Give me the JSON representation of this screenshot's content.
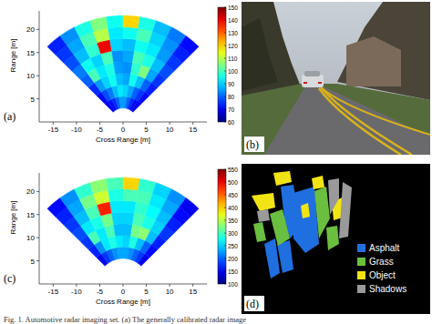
{
  "chart_data": [
    {
      "type": "heatmap",
      "panel_label": "(a)",
      "xlabel": "Cross Range [m]",
      "ylabel": "Range [m]",
      "xlim": [
        -18,
        18
      ],
      "ylim": [
        0,
        24
      ],
      "xticks": [
        -15,
        -10,
        -5,
        0,
        5,
        10,
        15
      ],
      "yticks": [
        5,
        10,
        15,
        20
      ],
      "angle_edges": [
        -45,
        -36,
        -27,
        -18,
        -9,
        0,
        9,
        18,
        27,
        36,
        45
      ],
      "range_edges": [
        3,
        5.5,
        8,
        10.5,
        13,
        15.5,
        18,
        20.5,
        23
      ],
      "cells": [
        [
          70,
          72,
          75,
          80,
          85,
          85,
          80,
          75,
          72,
          70
        ],
        [
          72,
          78,
          82,
          88,
          92,
          90,
          86,
          80,
          76,
          72
        ],
        [
          75,
          85,
          90,
          95,
          88,
          86,
          95,
          88,
          80,
          74
        ],
        [
          80,
          100,
          92,
          96,
          85,
          84,
          98,
          105,
          86,
          76
        ],
        [
          82,
          95,
          90,
          100,
          84,
          86,
          100,
          96,
          88,
          78
        ],
        [
          78,
          88,
          98,
          140,
          90,
          88,
          95,
          92,
          85,
          76
        ],
        [
          76,
          86,
          100,
          110,
          92,
          95,
          100,
          90,
          84,
          74
        ],
        [
          74,
          84,
          96,
          105,
          95,
          120,
          96,
          88,
          82,
          72
        ]
      ],
      "colorbar_lim": [
        60,
        150
      ],
      "colorbar_ticks": [
        60,
        70,
        80,
        90,
        100,
        110,
        120,
        130,
        140,
        150
      ]
    },
    {
      "type": "heatmap",
      "panel_label": "(c)",
      "xlabel": "Cross Range [m]",
      "ylabel": "Range [m]",
      "xlim": [
        -18,
        18
      ],
      "ylim": [
        0,
        24
      ],
      "xticks": [
        -15,
        -10,
        -5,
        0,
        5,
        10,
        15
      ],
      "yticks": [
        5,
        10,
        15,
        20
      ],
      "angle_edges": [
        -45,
        -36,
        -27,
        -18,
        -9,
        0,
        9,
        18,
        27,
        36,
        45
      ],
      "range_edges": [
        5.5,
        8,
        10.5,
        13,
        15.5,
        18,
        20.5,
        23
      ],
      "cells": [
        [
          150,
          180,
          200,
          220,
          230,
          230,
          220,
          200,
          180,
          150
        ],
        [
          170,
          220,
          260,
          280,
          260,
          250,
          280,
          240,
          200,
          160
        ],
        [
          180,
          300,
          260,
          300,
          240,
          240,
          320,
          330,
          240,
          170
        ],
        [
          190,
          260,
          280,
          320,
          250,
          250,
          300,
          280,
          250,
          180
        ],
        [
          180,
          240,
          300,
          480,
          260,
          260,
          290,
          270,
          240,
          170
        ],
        [
          170,
          230,
          320,
          360,
          280,
          300,
          300,
          260,
          230,
          160
        ],
        [
          160,
          220,
          290,
          330,
          300,
          400,
          290,
          250,
          220,
          150
        ]
      ],
      "colorbar_lim": [
        100,
        550
      ],
      "colorbar_ticks": [
        100,
        150,
        200,
        250,
        300,
        350,
        400,
        450,
        500,
        550
      ]
    }
  ],
  "photo": {
    "panel_label": "(b)"
  },
  "segmentation": {
    "panel_label": "(d)",
    "classes": [
      {
        "label": "Asphalt",
        "color": "#1f6fe0"
      },
      {
        "label": "Grass",
        "color": "#6abf40"
      },
      {
        "label": "Object",
        "color": "#f2e414"
      },
      {
        "label": "Shadows",
        "color": "#9a9a9a"
      }
    ]
  },
  "caption": "Fig. 1.  Automotive radar imaging set. (a) The generally calibrated radar image"
}
